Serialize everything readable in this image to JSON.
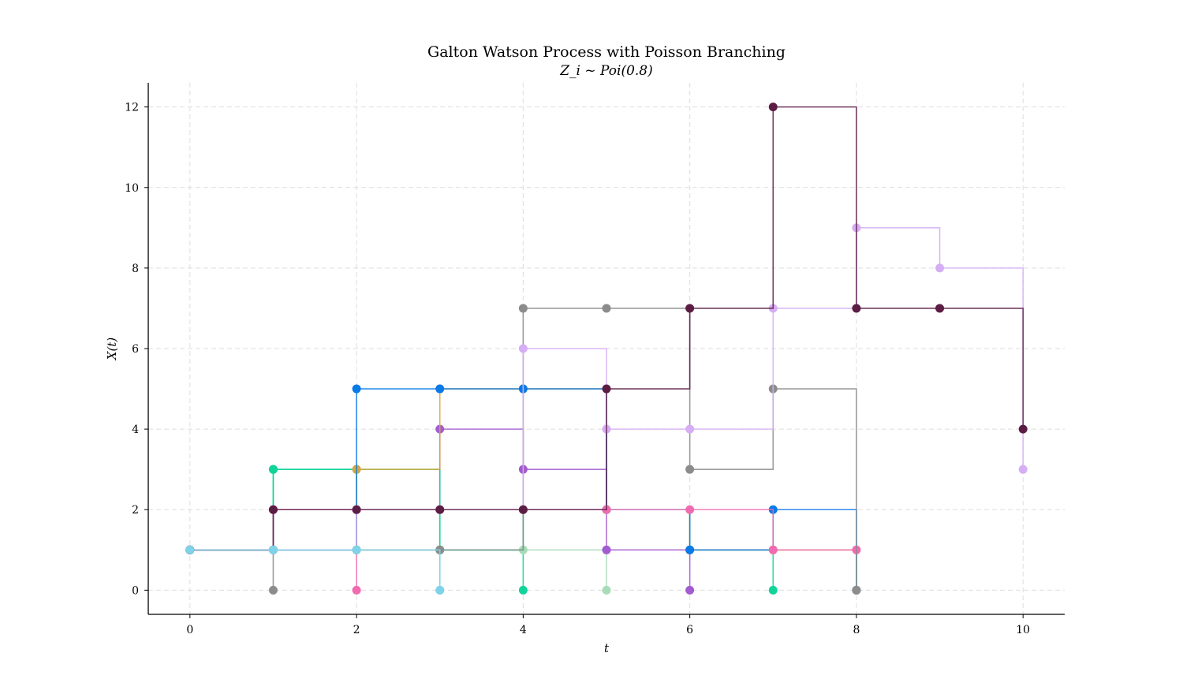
{
  "chart_data": {
    "type": "line",
    "step": true,
    "markers": true,
    "title": "Galton Watson Process with Poisson Branching",
    "subtitle": "Z_i ~ Poi(0.8)",
    "xlabel": "t",
    "ylabel": "X(t)",
    "xlim": [
      -0.5,
      10.5
    ],
    "ylim": [
      -0.6,
      12.6
    ],
    "xticks": [
      0,
      2,
      4,
      6,
      8,
      10
    ],
    "yticks": [
      0,
      2,
      4,
      6,
      8,
      10,
      12
    ],
    "grid": true,
    "series": [
      {
        "color": "#8c8c8c",
        "x": [
          0,
          1
        ],
        "y": [
          1,
          0
        ]
      },
      {
        "color": "#f06bb0",
        "x": [
          0,
          1,
          2
        ],
        "y": [
          1,
          2,
          0
        ]
      },
      {
        "color": "#7fd3e8",
        "x": [
          0,
          1,
          2,
          3
        ],
        "y": [
          1,
          1,
          1,
          0
        ]
      },
      {
        "color": "#12d39a",
        "x": [
          0,
          1,
          2,
          3,
          4
        ],
        "y": [
          1,
          3,
          2,
          1,
          0
        ]
      },
      {
        "color": "#a8dcb8",
        "x": [
          0,
          1,
          2,
          3,
          4,
          5
        ],
        "y": [
          1,
          1,
          1,
          2,
          1,
          0
        ]
      },
      {
        "color": "#a35bd0",
        "x": [
          0,
          1,
          2,
          3,
          4,
          5,
          6
        ],
        "y": [
          1,
          2,
          2,
          4,
          3,
          1,
          0
        ]
      },
      {
        "color": "#12d39a",
        "x": [
          0,
          1,
          2,
          3,
          4,
          5,
          6,
          7
        ],
        "y": [
          1,
          3,
          3,
          1,
          2,
          2,
          1,
          0
        ]
      },
      {
        "color": "#d9a441",
        "x": [
          0,
          1,
          2,
          3,
          4,
          5,
          6,
          7,
          8
        ],
        "y": [
          1,
          1,
          3,
          5,
          5,
          2,
          1,
          1,
          0
        ]
      },
      {
        "color": "#0a7ae8",
        "x": [
          0,
          1,
          2,
          3,
          4,
          5,
          6,
          7,
          8
        ],
        "y": [
          1,
          1,
          5,
          5,
          5,
          2,
          1,
          2,
          0
        ]
      },
      {
        "color": "#f06bb0",
        "x": [
          0,
          1,
          2,
          3,
          4,
          5,
          6,
          7,
          8
        ],
        "y": [
          1,
          2,
          2,
          2,
          2,
          2,
          2,
          1,
          1
        ]
      },
      {
        "color": "#8c8c8c",
        "x": [
          0,
          1,
          2,
          3,
          4,
          5,
          6,
          7,
          8
        ],
        "y": [
          1,
          1,
          1,
          1,
          7,
          7,
          3,
          5,
          0
        ]
      },
      {
        "color": "#d5aef6",
        "x": [
          0,
          1,
          2,
          3,
          4,
          5,
          6,
          7,
          8,
          9,
          10
        ],
        "y": [
          1,
          1,
          2,
          2,
          6,
          4,
          4,
          7,
          9,
          8,
          3
        ]
      },
      {
        "color": "#5c1d45",
        "x": [
          0,
          1,
          2,
          3,
          4,
          5,
          6,
          7,
          8,
          9,
          10
        ],
        "y": [
          1,
          2,
          2,
          2,
          2,
          5,
          7,
          12,
          7,
          7,
          4
        ]
      },
      {
        "color": "#7fd3e8",
        "x": [
          0,
          1,
          2,
          3
        ],
        "y": [
          1,
          1,
          1,
          0
        ]
      }
    ]
  }
}
